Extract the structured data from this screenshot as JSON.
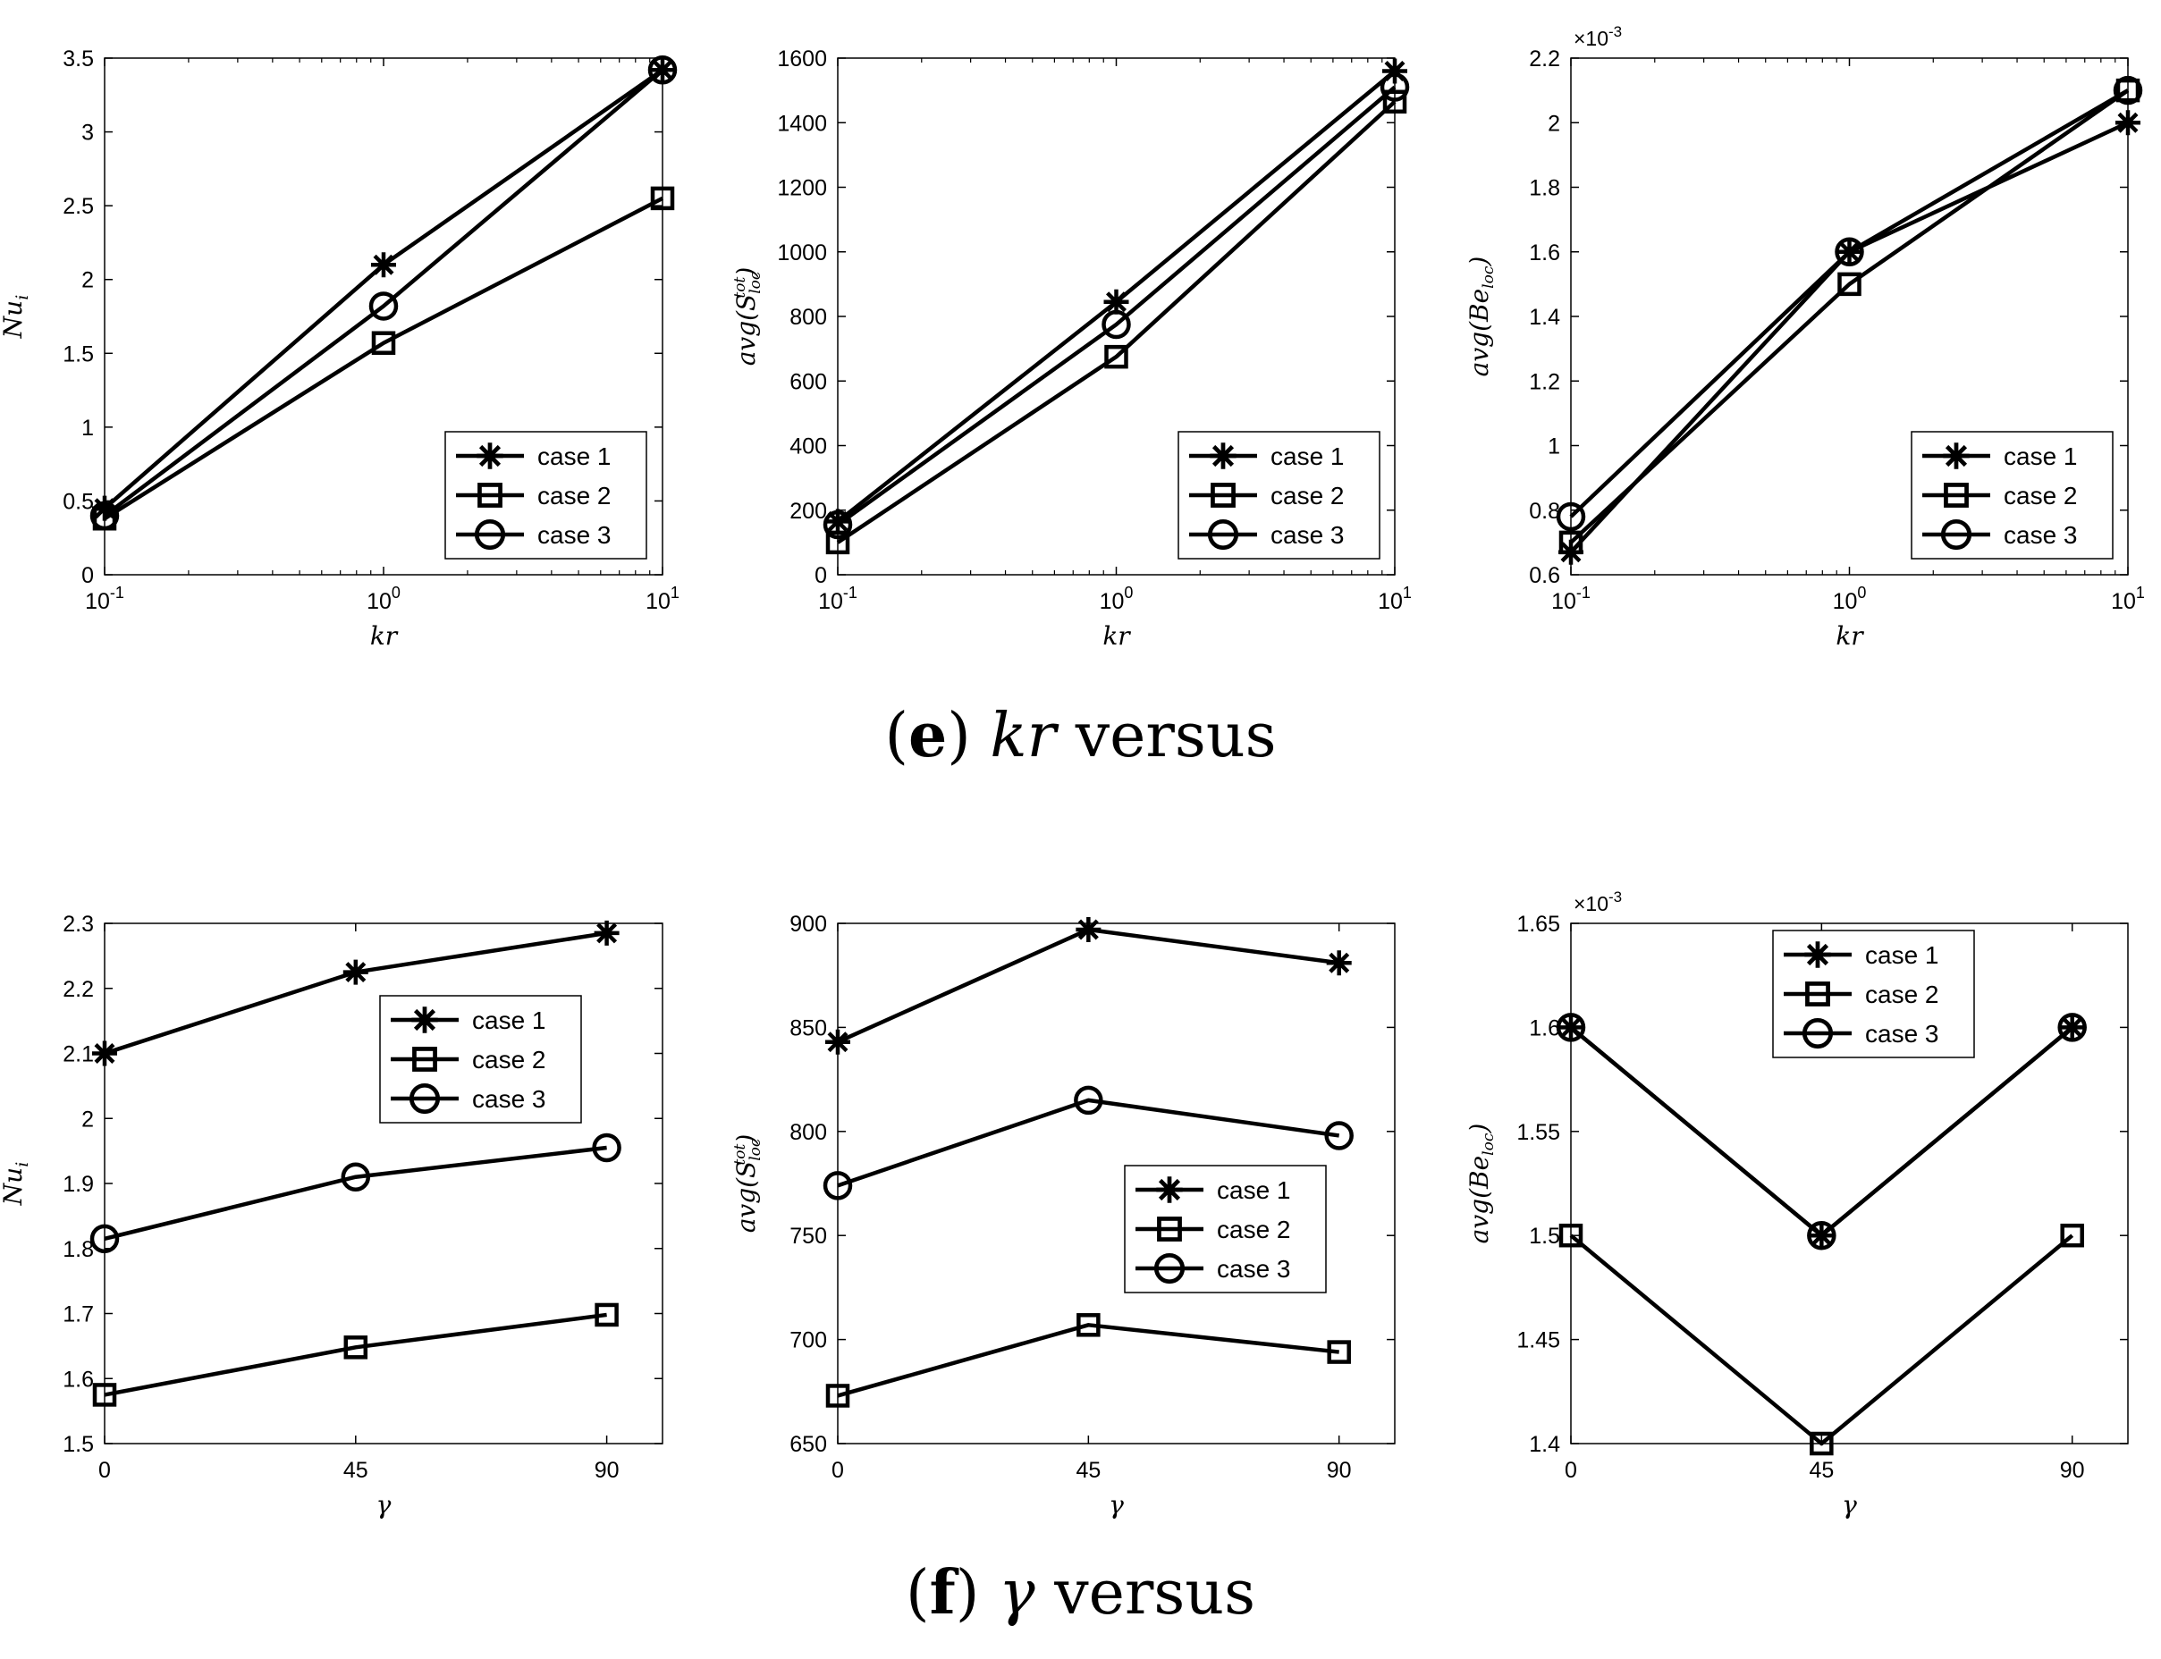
{
  "captions": {
    "e": {
      "letter": "e",
      "symbol": "kr",
      "rest": " versus"
    },
    "f": {
      "letter": "f",
      "symbol": "γ",
      "rest": " versus"
    }
  },
  "legend_labels": [
    "case 1",
    "case 2",
    "case 3"
  ],
  "chart_data": [
    {
      "id": "e-nu",
      "type": "line",
      "xscale": "log",
      "xlabel": "kr",
      "ylabel": "Nu_i (overbar)",
      "ylabel_parts": {
        "base": "Nu",
        "sub": "i",
        "bar": true
      },
      "xticks": [
        "10^-1",
        "10^0",
        "10^1"
      ],
      "x": [
        0.1,
        1,
        10
      ],
      "ylim": [
        0,
        3.5
      ],
      "yticks": [
        "0",
        "0.5",
        "1",
        "1.5",
        "2",
        "2.5",
        "3",
        "3.5"
      ],
      "ytick_values": [
        0,
        0.5,
        1,
        1.5,
        2,
        2.5,
        3,
        3.5
      ],
      "exponent": "",
      "legend_position": "bottom-right",
      "series": [
        {
          "name": "case 1",
          "marker": "asterisk",
          "values": [
            0.45,
            2.1,
            3.42
          ]
        },
        {
          "name": "case 2",
          "marker": "square",
          "values": [
            0.38,
            1.57,
            2.55
          ]
        },
        {
          "name": "case 3",
          "marker": "circle",
          "values": [
            0.4,
            1.82,
            3.42
          ]
        }
      ]
    },
    {
      "id": "e-s",
      "type": "line",
      "xscale": "log",
      "xlabel": "kr",
      "ylabel": "avg(S_loc^tot)",
      "ylabel_parts": {
        "pre": "avg(S",
        "sub": "loc",
        "sup": "tot",
        "post": ")"
      },
      "xticks": [
        "10^-1",
        "10^0",
        "10^1"
      ],
      "x": [
        0.1,
        1,
        10
      ],
      "ylim": [
        0,
        1600
      ],
      "yticks": [
        "0",
        "200",
        "400",
        "600",
        "800",
        "1000",
        "1200",
        "1400",
        "1600"
      ],
      "ytick_values": [
        0,
        200,
        400,
        600,
        800,
        1000,
        1200,
        1400,
        1600
      ],
      "exponent": "",
      "legend_position": "bottom-right",
      "series": [
        {
          "name": "case 1",
          "marker": "asterisk",
          "values": [
            165,
            845,
            1560
          ]
        },
        {
          "name": "case 2",
          "marker": "square",
          "values": [
            100,
            675,
            1465
          ]
        },
        {
          "name": "case 3",
          "marker": "circle",
          "values": [
            155,
            775,
            1510
          ]
        }
      ]
    },
    {
      "id": "e-be",
      "type": "line",
      "xscale": "log",
      "xlabel": "kr",
      "ylabel": "avg(Be_loc)",
      "ylabel_parts": {
        "pre": "avg(Be",
        "sub": "loc",
        "post": ")"
      },
      "xticks": [
        "10^-1",
        "10^0",
        "10^1"
      ],
      "x": [
        0.1,
        1,
        10
      ],
      "ylim": [
        0.6,
        2.2
      ],
      "yticks": [
        "0.6",
        "0.8",
        "1",
        "1.2",
        "1.4",
        "1.6",
        "1.8",
        "2",
        "2.2"
      ],
      "ytick_values": [
        0.6,
        0.8,
        1,
        1.2,
        1.4,
        1.6,
        1.8,
        2,
        2.2
      ],
      "exponent": "-3",
      "legend_position": "bottom-right",
      "series": [
        {
          "name": "case 1",
          "marker": "asterisk",
          "values": [
            0.67,
            1.6,
            2.0
          ]
        },
        {
          "name": "case 2",
          "marker": "square",
          "values": [
            0.7,
            1.5,
            2.1
          ]
        },
        {
          "name": "case 3",
          "marker": "circle",
          "values": [
            0.78,
            1.6,
            2.1
          ]
        }
      ]
    },
    {
      "id": "f-nu",
      "type": "line",
      "xscale": "linear",
      "xlabel": "γ",
      "ylabel": "Nu_i (overbar)",
      "ylabel_parts": {
        "base": "Nu",
        "sub": "i",
        "bar": true
      },
      "xticks": [
        "0",
        "45",
        "90"
      ],
      "x": [
        0,
        45,
        90
      ],
      "xlim": [
        0,
        100
      ],
      "ylim": [
        1.5,
        2.3
      ],
      "yticks": [
        "1.5",
        "1.6",
        "1.7",
        "1.8",
        "1.9",
        "2",
        "2.1",
        "2.2",
        "2.3"
      ],
      "ytick_values": [
        1.5,
        1.6,
        1.7,
        1.8,
        1.9,
        2.0,
        2.1,
        2.2,
        2.3
      ],
      "exponent": "",
      "legend_position": "upper-middle-right",
      "series": [
        {
          "name": "case 1",
          "marker": "asterisk",
          "values": [
            2.1,
            2.225,
            2.285
          ]
        },
        {
          "name": "case 2",
          "marker": "square",
          "values": [
            1.575,
            1.648,
            1.698
          ]
        },
        {
          "name": "case 3",
          "marker": "circle",
          "values": [
            1.815,
            1.91,
            1.955
          ]
        }
      ]
    },
    {
      "id": "f-s",
      "type": "line",
      "xscale": "linear",
      "xlabel": "γ",
      "ylabel": "avg(S_loc^tot)",
      "ylabel_parts": {
        "pre": "avg(S",
        "sub": "loc",
        "sup": "tot",
        "post": ")"
      },
      "xticks": [
        "0",
        "45",
        "90"
      ],
      "x": [
        0,
        45,
        90
      ],
      "xlim": [
        0,
        100
      ],
      "ylim": [
        650,
        900
      ],
      "yticks": [
        "650",
        "700",
        "750",
        "800",
        "850",
        "900"
      ],
      "ytick_values": [
        650,
        700,
        750,
        800,
        850,
        900
      ],
      "exponent": "",
      "legend_position": "middle-right",
      "series": [
        {
          "name": "case 1",
          "marker": "asterisk",
          "values": [
            843,
            897,
            881
          ]
        },
        {
          "name": "case 2",
          "marker": "square",
          "values": [
            673,
            707,
            694
          ]
        },
        {
          "name": "case 3",
          "marker": "circle",
          "values": [
            774,
            815,
            798
          ]
        }
      ]
    },
    {
      "id": "f-be",
      "type": "line",
      "xscale": "linear",
      "xlabel": "γ",
      "ylabel": "avg(Be_loc)",
      "ylabel_parts": {
        "pre": "avg(Be",
        "sub": "loc",
        "post": ")"
      },
      "xticks": [
        "0",
        "45",
        "90"
      ],
      "x": [
        0,
        45,
        90
      ],
      "xlim": [
        0,
        100
      ],
      "ylim": [
        1.4,
        1.65
      ],
      "yticks": [
        "1.4",
        "1.45",
        "1.5",
        "1.55",
        "1.6",
        "1.65"
      ],
      "ytick_values": [
        1.4,
        1.45,
        1.5,
        1.55,
        1.6,
        1.65
      ],
      "exponent": "-3",
      "legend_position": "top-center",
      "series": [
        {
          "name": "case 1",
          "marker": "asterisk",
          "values": [
            1.6,
            1.5,
            1.6
          ]
        },
        {
          "name": "case 2",
          "marker": "square",
          "values": [
            1.5,
            1.4,
            1.5
          ]
        },
        {
          "name": "case 3",
          "marker": "circle",
          "values": [
            1.6,
            1.5,
            1.6
          ]
        }
      ]
    }
  ]
}
